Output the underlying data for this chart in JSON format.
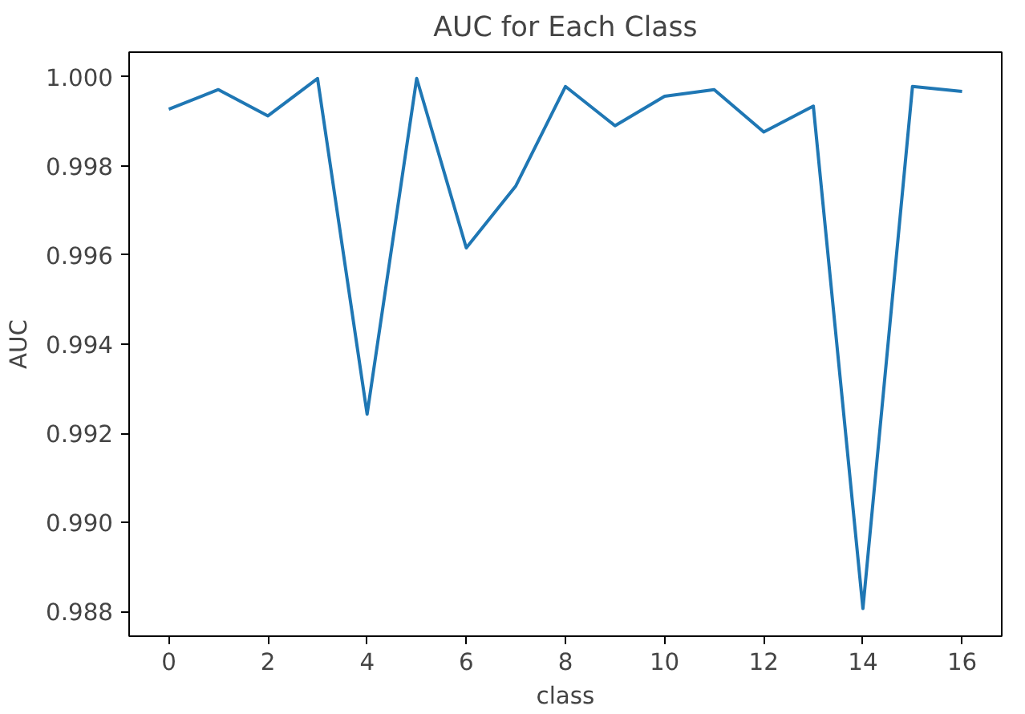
{
  "chart_data": {
    "type": "line",
    "title": "AUC for Each Class",
    "xlabel": "class",
    "ylabel": "AUC",
    "x": [
      0,
      1,
      2,
      3,
      4,
      5,
      6,
      7,
      8,
      9,
      10,
      11,
      12,
      13,
      14,
      15,
      16
    ],
    "series": [
      {
        "color": "#1f77b4",
        "values": [
          0.99927,
          0.99971,
          0.99912,
          0.99996,
          0.99243,
          0.99996,
          0.99616,
          0.99755,
          0.99978,
          0.9989,
          0.99956,
          0.99971,
          0.99876,
          0.99934,
          0.98807,
          0.99978,
          0.99967
        ]
      }
    ],
    "xlim": [
      -0.8,
      16.8
    ],
    "ylim": [
      0.98745,
      1.00055
    ],
    "xticks": [
      0,
      2,
      4,
      6,
      8,
      10,
      12,
      14,
      16
    ],
    "yticks": [
      {
        "value": 0.988,
        "label": "0.988"
      },
      {
        "value": 0.99,
        "label": "0.990"
      },
      {
        "value": 0.992,
        "label": "0.992"
      },
      {
        "value": 0.994,
        "label": "0.994"
      },
      {
        "value": 0.996,
        "label": "0.996"
      },
      {
        "value": 0.998,
        "label": "0.998"
      },
      {
        "value": 1.0,
        "label": "1.000"
      }
    ],
    "grid": false,
    "marker": "none",
    "line_style": "solid"
  }
}
